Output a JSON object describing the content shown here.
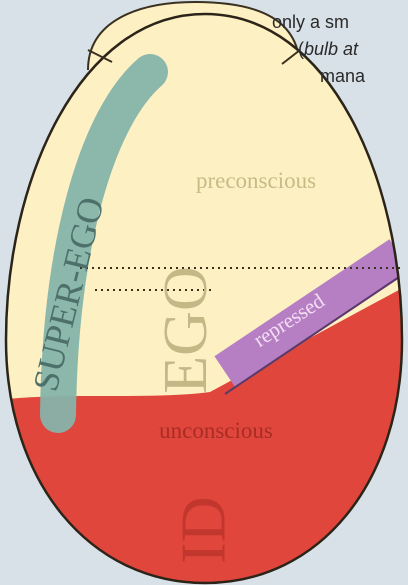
{
  "notes": {
    "line1": "only a sm",
    "line2_open": "(",
    "line2_italic": "bulb at",
    "line3": "mana"
  },
  "labels": {
    "preconscious": "preconscious",
    "superego": "SUPER-EGO",
    "ego": "EGO",
    "repressed": "repressed",
    "unconscious": "unconscious",
    "id": "ID"
  }
}
